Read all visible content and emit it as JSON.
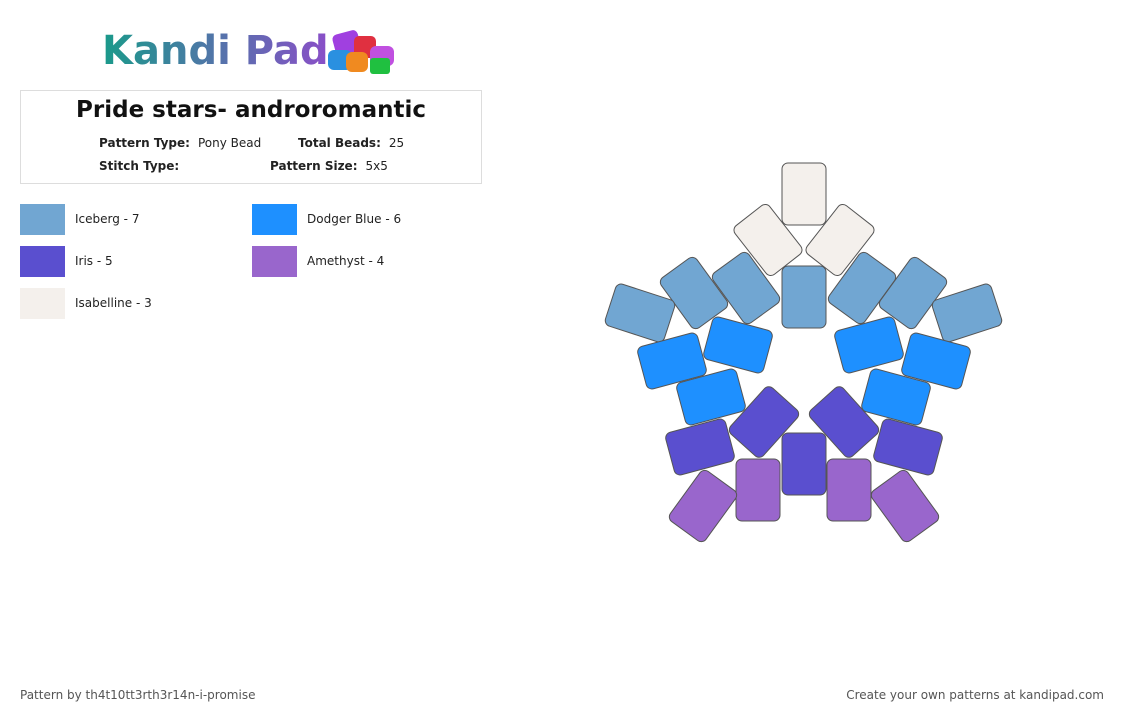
{
  "header": {
    "logo": "Kandi Pad"
  },
  "pattern": {
    "title": "Pride stars- androromantic",
    "pattern_type_label": "Pattern Type:",
    "pattern_type": "Pony Bead",
    "total_beads_label": "Total Beads:",
    "total_beads": "25",
    "stitch_type_label": "Stitch Type:",
    "pattern_size_label": "Pattern Size:",
    "pattern_size": "5x5"
  },
  "legend": [
    {
      "label": "Iceberg - 7",
      "color": "#71a6d2"
    },
    {
      "label": "Dodger Blue - 6",
      "color": "#1e90ff"
    },
    {
      "label": "Iris - 5",
      "color": "#5a4fcf"
    },
    {
      "label": "Amethyst - 4",
      "color": "#9966cc"
    },
    {
      "label": "Isabelline - 3",
      "color": "#f4f0ec"
    }
  ],
  "footer": {
    "author": "Pattern by th4t10tt3rth3r14n-i-promise",
    "cta": "Create your own patterns at kandipad.com"
  }
}
